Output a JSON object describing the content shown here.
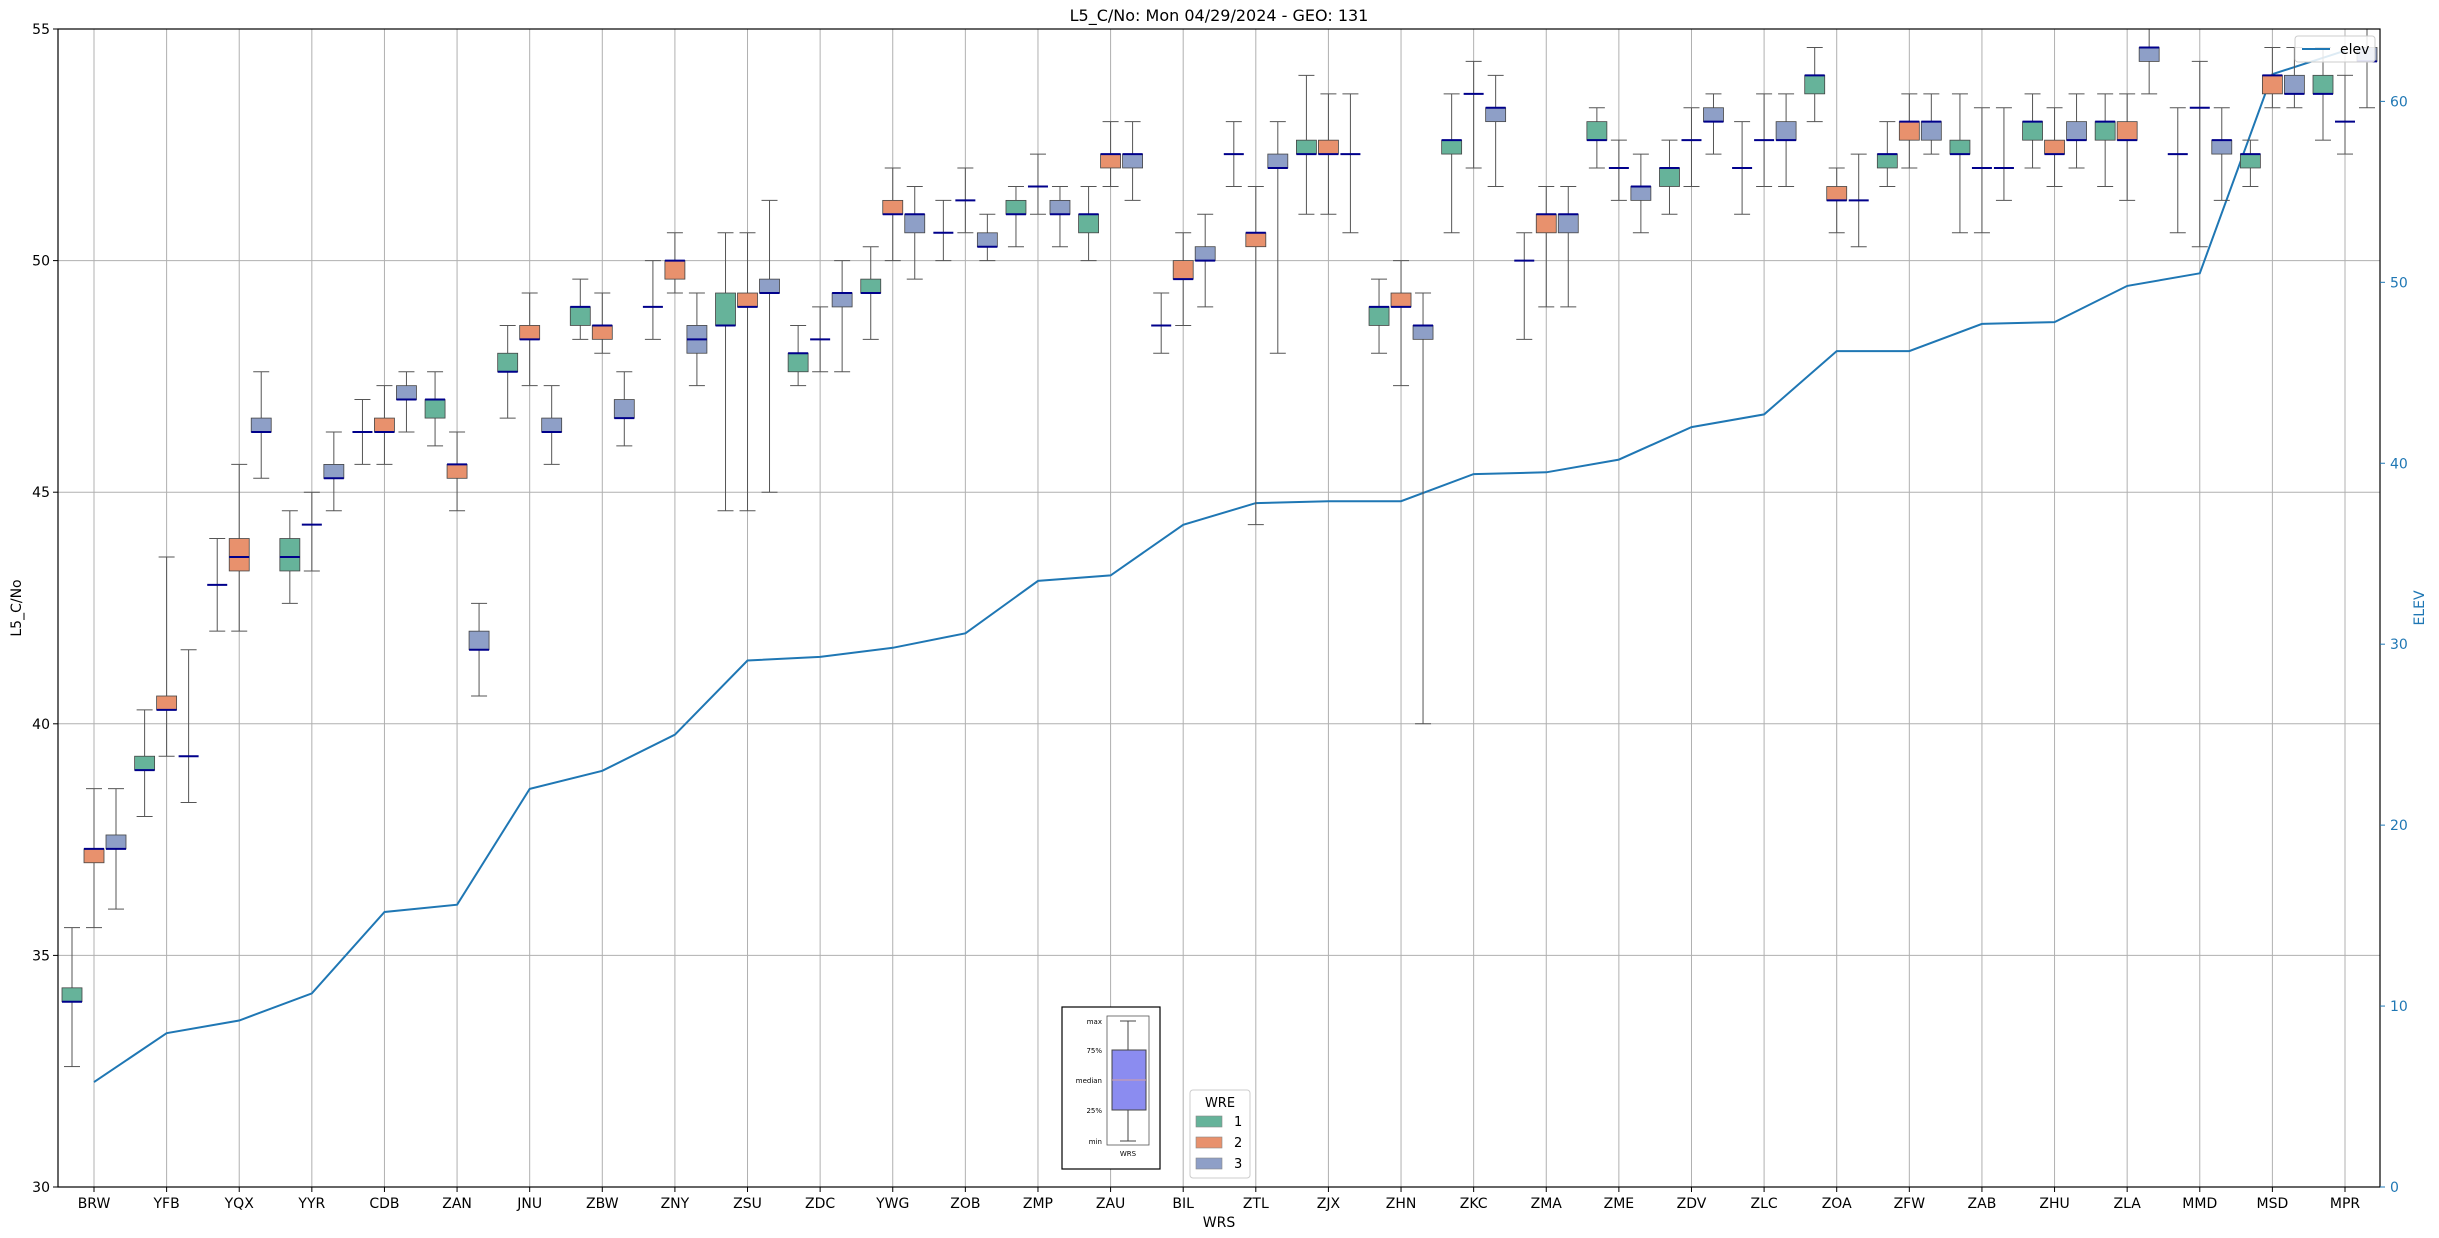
{
  "chart_data": {
    "type": "box",
    "title": "L5_C/No: Mon 04/29/2024 - GEO: 131",
    "xlabel": "WRS",
    "ylabel": "L5_C/No",
    "y2label": "ELEV",
    "ylim": [
      30,
      55
    ],
    "y2lim": [
      0,
      64
    ],
    "yticks": [
      30,
      35,
      40,
      45,
      50,
      55
    ],
    "y2ticks": [
      0,
      10,
      20,
      30,
      40,
      50,
      60
    ],
    "grid": true,
    "categories": [
      "BRW",
      "YFB",
      "YQX",
      "YYR",
      "CDB",
      "ZAN",
      "JNU",
      "ZBW",
      "ZNY",
      "ZSU",
      "ZDC",
      "YWG",
      "ZOB",
      "ZMP",
      "ZAU",
      "BIL",
      "ZTL",
      "ZJX",
      "ZHN",
      "ZKC",
      "ZMA",
      "ZME",
      "ZDV",
      "ZLC",
      "ZOA",
      "ZFW",
      "ZAB",
      "ZHU",
      "ZLA",
      "MMD",
      "MSD",
      "MPR"
    ],
    "wre_colors": {
      "1": "#66b39a",
      "2": "#e8916d",
      "3": "#8e9fc7"
    },
    "median_color": "#00008b",
    "elev_color": "#1f77b4",
    "boxes": [
      {
        "wrs": "BRW",
        "wre": 1,
        "min": 32.6,
        "q1": 34.0,
        "median": 34.0,
        "q3": 34.3,
        "max": 35.6
      },
      {
        "wrs": "BRW",
        "wre": 2,
        "min": 35.6,
        "q1": 37.0,
        "median": 37.3,
        "q3": 37.3,
        "max": 38.6
      },
      {
        "wrs": "BRW",
        "wre": 3,
        "min": 36.0,
        "q1": 37.3,
        "median": 37.3,
        "q3": 37.6,
        "max": 38.6
      },
      {
        "wrs": "YFB",
        "wre": 1,
        "min": 38.0,
        "q1": 39.0,
        "median": 39.0,
        "q3": 39.3,
        "max": 40.3
      },
      {
        "wrs": "YFB",
        "wre": 2,
        "min": 39.3,
        "q1": 40.3,
        "median": 40.3,
        "q3": 40.6,
        "max": 43.6
      },
      {
        "wrs": "YFB",
        "wre": 3,
        "min": 38.3,
        "q1": 39.3,
        "median": 39.3,
        "q3": 39.3,
        "max": 41.6
      },
      {
        "wrs": "YQX",
        "wre": 1,
        "min": 42.0,
        "q1": 43.0,
        "median": 43.0,
        "q3": 43.0,
        "max": 44.0
      },
      {
        "wrs": "YQX",
        "wre": 2,
        "min": 42.0,
        "q1": 43.3,
        "median": 43.6,
        "q3": 44.0,
        "max": 45.6
      },
      {
        "wrs": "YQX",
        "wre": 3,
        "min": 45.3,
        "q1": 46.3,
        "median": 46.3,
        "q3": 46.6,
        "max": 47.6
      },
      {
        "wrs": "YYR",
        "wre": 1,
        "min": 42.6,
        "q1": 43.3,
        "median": 43.6,
        "q3": 44.0,
        "max": 44.6
      },
      {
        "wrs": "YYR",
        "wre": 2,
        "min": 43.3,
        "q1": 44.3,
        "median": 44.3,
        "q3": 44.3,
        "max": 45.0
      },
      {
        "wrs": "YYR",
        "wre": 3,
        "min": 44.6,
        "q1": 45.3,
        "median": 45.3,
        "q3": 45.6,
        "max": 46.3
      },
      {
        "wrs": "CDB",
        "wre": 1,
        "min": 45.6,
        "q1": 46.3,
        "median": 46.3,
        "q3": 46.3,
        "max": 47.0
      },
      {
        "wrs": "CDB",
        "wre": 2,
        "min": 45.6,
        "q1": 46.3,
        "median": 46.3,
        "q3": 46.6,
        "max": 47.3
      },
      {
        "wrs": "CDB",
        "wre": 3,
        "min": 46.3,
        "q1": 47.0,
        "median": 47.0,
        "q3": 47.3,
        "max": 47.6
      },
      {
        "wrs": "ZAN",
        "wre": 1,
        "min": 46.0,
        "q1": 46.6,
        "median": 47.0,
        "q3": 47.0,
        "max": 47.6
      },
      {
        "wrs": "ZAN",
        "wre": 2,
        "min": 44.6,
        "q1": 45.3,
        "median": 45.6,
        "q3": 45.6,
        "max": 46.3
      },
      {
        "wrs": "ZAN",
        "wre": 3,
        "min": 40.6,
        "q1": 41.6,
        "median": 41.6,
        "q3": 42.0,
        "max": 42.6
      },
      {
        "wrs": "JNU",
        "wre": 1,
        "min": 46.6,
        "q1": 47.6,
        "median": 47.6,
        "q3": 48.0,
        "max": 48.6
      },
      {
        "wrs": "JNU",
        "wre": 2,
        "min": 47.3,
        "q1": 48.3,
        "median": 48.3,
        "q3": 48.6,
        "max": 49.3
      },
      {
        "wrs": "JNU",
        "wre": 3,
        "min": 45.6,
        "q1": 46.3,
        "median": 46.3,
        "q3": 46.6,
        "max": 47.3
      },
      {
        "wrs": "ZBW",
        "wre": 1,
        "min": 48.3,
        "q1": 48.6,
        "median": 49.0,
        "q3": 49.0,
        "max": 49.6
      },
      {
        "wrs": "ZBW",
        "wre": 2,
        "min": 48.0,
        "q1": 48.3,
        "median": 48.6,
        "q3": 48.6,
        "max": 49.3
      },
      {
        "wrs": "ZBW",
        "wre": 3,
        "min": 46.0,
        "q1": 46.6,
        "median": 46.6,
        "q3": 47.0,
        "max": 47.6
      },
      {
        "wrs": "ZNY",
        "wre": 1,
        "min": 48.3,
        "q1": 49.0,
        "median": 49.0,
        "q3": 49.0,
        "max": 50.0
      },
      {
        "wrs": "ZNY",
        "wre": 2,
        "min": 49.3,
        "q1": 49.6,
        "median": 50.0,
        "q3": 50.0,
        "max": 50.6
      },
      {
        "wrs": "ZNY",
        "wre": 3,
        "min": 47.3,
        "q1": 48.0,
        "median": 48.3,
        "q3": 48.6,
        "max": 49.3
      },
      {
        "wrs": "ZSU",
        "wre": 1,
        "min": 44.6,
        "q1": 48.6,
        "median": 48.6,
        "q3": 49.3,
        "max": 50.6
      },
      {
        "wrs": "ZSU",
        "wre": 2,
        "min": 44.6,
        "q1": 49.0,
        "median": 49.0,
        "q3": 49.3,
        "max": 50.6
      },
      {
        "wrs": "ZSU",
        "wre": 3,
        "min": 45.0,
        "q1": 49.3,
        "median": 49.3,
        "q3": 49.6,
        "max": 51.3
      },
      {
        "wrs": "ZDC",
        "wre": 1,
        "min": 47.3,
        "q1": 47.6,
        "median": 48.0,
        "q3": 48.0,
        "max": 48.6
      },
      {
        "wrs": "ZDC",
        "wre": 2,
        "min": 47.6,
        "q1": 48.3,
        "median": 48.3,
        "q3": 48.3,
        "max": 49.0
      },
      {
        "wrs": "ZDC",
        "wre": 3,
        "min": 47.6,
        "q1": 49.0,
        "median": 49.3,
        "q3": 49.3,
        "max": 50.0
      },
      {
        "wrs": "YWG",
        "wre": 1,
        "min": 48.3,
        "q1": 49.3,
        "median": 49.3,
        "q3": 49.6,
        "max": 50.3
      },
      {
        "wrs": "YWG",
        "wre": 2,
        "min": 50.0,
        "q1": 51.0,
        "median": 51.0,
        "q3": 51.3,
        "max": 52.0
      },
      {
        "wrs": "YWG",
        "wre": 3,
        "min": 49.6,
        "q1": 50.6,
        "median": 51.0,
        "q3": 51.0,
        "max": 51.6
      },
      {
        "wrs": "ZOB",
        "wre": 1,
        "min": 50.0,
        "q1": 50.6,
        "median": 50.6,
        "q3": 50.6,
        "max": 51.3
      },
      {
        "wrs": "ZOB",
        "wre": 2,
        "min": 50.6,
        "q1": 51.3,
        "median": 51.3,
        "q3": 51.3,
        "max": 52.0
      },
      {
        "wrs": "ZOB",
        "wre": 3,
        "min": 50.0,
        "q1": 50.3,
        "median": 50.3,
        "q3": 50.6,
        "max": 51.0
      },
      {
        "wrs": "ZMP",
        "wre": 1,
        "min": 50.3,
        "q1": 51.0,
        "median": 51.0,
        "q3": 51.3,
        "max": 51.6
      },
      {
        "wrs": "ZMP",
        "wre": 2,
        "min": 51.0,
        "q1": 51.6,
        "median": 51.6,
        "q3": 51.6,
        "max": 52.3
      },
      {
        "wrs": "ZMP",
        "wre": 3,
        "min": 50.3,
        "q1": 51.0,
        "median": 51.0,
        "q3": 51.3,
        "max": 51.6
      },
      {
        "wrs": "ZAU",
        "wre": 1,
        "min": 50.0,
        "q1": 50.6,
        "median": 51.0,
        "q3": 51.0,
        "max": 51.6
      },
      {
        "wrs": "ZAU",
        "wre": 2,
        "min": 51.6,
        "q1": 52.0,
        "median": 52.3,
        "q3": 52.3,
        "max": 53.0
      },
      {
        "wrs": "ZAU",
        "wre": 3,
        "min": 51.3,
        "q1": 52.0,
        "median": 52.3,
        "q3": 52.3,
        "max": 53.0
      },
      {
        "wrs": "BIL",
        "wre": 1,
        "min": 48.0,
        "q1": 48.6,
        "median": 48.6,
        "q3": 48.6,
        "max": 49.3
      },
      {
        "wrs": "BIL",
        "wre": 2,
        "min": 48.6,
        "q1": 49.6,
        "median": 49.6,
        "q3": 50.0,
        "max": 50.6
      },
      {
        "wrs": "BIL",
        "wre": 3,
        "min": 49.0,
        "q1": 50.0,
        "median": 50.0,
        "q3": 50.3,
        "max": 51.0
      },
      {
        "wrs": "ZTL",
        "wre": 1,
        "min": 51.6,
        "q1": 52.3,
        "median": 52.3,
        "q3": 52.3,
        "max": 53.0
      },
      {
        "wrs": "ZTL",
        "wre": 2,
        "min": 44.3,
        "q1": 50.3,
        "median": 50.6,
        "q3": 50.6,
        "max": 51.6
      },
      {
        "wrs": "ZTL",
        "wre": 3,
        "min": 48.0,
        "q1": 52.0,
        "median": 52.0,
        "q3": 52.3,
        "max": 53.0
      },
      {
        "wrs": "ZJX",
        "wre": 1,
        "min": 51.0,
        "q1": 52.3,
        "median": 52.3,
        "q3": 52.6,
        "max": 54.0
      },
      {
        "wrs": "ZJX",
        "wre": 2,
        "min": 51.0,
        "q1": 52.3,
        "median": 52.3,
        "q3": 52.6,
        "max": 53.6
      },
      {
        "wrs": "ZJX",
        "wre": 3,
        "min": 50.6,
        "q1": 52.3,
        "median": 52.3,
        "q3": 52.3,
        "max": 53.6
      },
      {
        "wrs": "ZHN",
        "wre": 1,
        "min": 48.0,
        "q1": 48.6,
        "median": 49.0,
        "q3": 49.0,
        "max": 49.6
      },
      {
        "wrs": "ZHN",
        "wre": 2,
        "min": 47.3,
        "q1": 49.0,
        "median": 49.0,
        "q3": 49.3,
        "max": 50.0
      },
      {
        "wrs": "ZHN",
        "wre": 3,
        "min": 40.0,
        "q1": 48.3,
        "median": 48.6,
        "q3": 48.6,
        "max": 49.3
      },
      {
        "wrs": "ZKC",
        "wre": 1,
        "min": 50.6,
        "q1": 52.3,
        "median": 52.6,
        "q3": 52.6,
        "max": 53.6
      },
      {
        "wrs": "ZKC",
        "wre": 2,
        "min": 52.0,
        "q1": 53.6,
        "median": 53.6,
        "q3": 53.6,
        "max": 54.3
      },
      {
        "wrs": "ZKC",
        "wre": 3,
        "min": 51.6,
        "q1": 53.0,
        "median": 53.3,
        "q3": 53.3,
        "max": 54.0
      },
      {
        "wrs": "ZMA",
        "wre": 1,
        "min": 48.3,
        "q1": 50.0,
        "median": 50.0,
        "q3": 50.0,
        "max": 50.6
      },
      {
        "wrs": "ZMA",
        "wre": 2,
        "min": 49.0,
        "q1": 50.6,
        "median": 51.0,
        "q3": 51.0,
        "max": 51.6
      },
      {
        "wrs": "ZMA",
        "wre": 3,
        "min": 49.0,
        "q1": 50.6,
        "median": 51.0,
        "q3": 51.0,
        "max": 51.6
      },
      {
        "wrs": "ZME",
        "wre": 1,
        "min": 52.0,
        "q1": 52.6,
        "median": 52.6,
        "q3": 53.0,
        "max": 53.3
      },
      {
        "wrs": "ZME",
        "wre": 2,
        "min": 51.3,
        "q1": 52.0,
        "median": 52.0,
        "q3": 52.0,
        "max": 52.6
      },
      {
        "wrs": "ZME",
        "wre": 3,
        "min": 50.6,
        "q1": 51.3,
        "median": 51.6,
        "q3": 51.6,
        "max": 52.3
      },
      {
        "wrs": "ZDV",
        "wre": 1,
        "min": 51.0,
        "q1": 51.6,
        "median": 52.0,
        "q3": 52.0,
        "max": 52.6
      },
      {
        "wrs": "ZDV",
        "wre": 2,
        "min": 51.6,
        "q1": 52.6,
        "median": 52.6,
        "q3": 52.6,
        "max": 53.3
      },
      {
        "wrs": "ZDV",
        "wre": 3,
        "min": 52.3,
        "q1": 53.0,
        "median": 53.0,
        "q3": 53.3,
        "max": 53.6
      },
      {
        "wrs": "ZLC",
        "wre": 1,
        "min": 51.0,
        "q1": 52.0,
        "median": 52.0,
        "q3": 52.0,
        "max": 53.0
      },
      {
        "wrs": "ZLC",
        "wre": 2,
        "min": 51.6,
        "q1": 52.6,
        "median": 52.6,
        "q3": 52.6,
        "max": 53.6
      },
      {
        "wrs": "ZLC",
        "wre": 3,
        "min": 51.6,
        "q1": 52.6,
        "median": 52.6,
        "q3": 53.0,
        "max": 53.6
      },
      {
        "wrs": "ZOA",
        "wre": 1,
        "min": 53.0,
        "q1": 53.6,
        "median": 54.0,
        "q3": 54.0,
        "max": 54.6
      },
      {
        "wrs": "ZOA",
        "wre": 2,
        "min": 50.6,
        "q1": 51.3,
        "median": 51.3,
        "q3": 51.6,
        "max": 52.0
      },
      {
        "wrs": "ZOA",
        "wre": 3,
        "min": 50.3,
        "q1": 51.3,
        "median": 51.3,
        "q3": 51.3,
        "max": 52.3
      },
      {
        "wrs": "ZFW",
        "wre": 1,
        "min": 51.6,
        "q1": 52.0,
        "median": 52.3,
        "q3": 52.3,
        "max": 53.0
      },
      {
        "wrs": "ZFW",
        "wre": 2,
        "min": 52.0,
        "q1": 52.6,
        "median": 53.0,
        "q3": 53.0,
        "max": 53.6
      },
      {
        "wrs": "ZFW",
        "wre": 3,
        "min": 52.3,
        "q1": 52.6,
        "median": 53.0,
        "q3": 53.0,
        "max": 53.6
      },
      {
        "wrs": "ZAB",
        "wre": 1,
        "min": 50.6,
        "q1": 52.3,
        "median": 52.3,
        "q3": 52.6,
        "max": 53.6
      },
      {
        "wrs": "ZAB",
        "wre": 2,
        "min": 50.6,
        "q1": 52.0,
        "median": 52.0,
        "q3": 52.0,
        "max": 53.3
      },
      {
        "wrs": "ZAB",
        "wre": 3,
        "min": 51.3,
        "q1": 52.0,
        "median": 52.0,
        "q3": 52.0,
        "max": 53.3
      },
      {
        "wrs": "ZHU",
        "wre": 1,
        "min": 52.0,
        "q1": 52.6,
        "median": 53.0,
        "q3": 53.0,
        "max": 53.6
      },
      {
        "wrs": "ZHU",
        "wre": 2,
        "min": 51.6,
        "q1": 52.3,
        "median": 52.3,
        "q3": 52.6,
        "max": 53.3
      },
      {
        "wrs": "ZHU",
        "wre": 3,
        "min": 52.0,
        "q1": 52.6,
        "median": 52.6,
        "q3": 53.0,
        "max": 53.6
      },
      {
        "wrs": "ZLA",
        "wre": 1,
        "min": 51.6,
        "q1": 52.6,
        "median": 53.0,
        "q3": 53.0,
        "max": 53.6
      },
      {
        "wrs": "ZLA",
        "wre": 2,
        "min": 51.3,
        "q1": 52.6,
        "median": 52.6,
        "q3": 53.0,
        "max": 53.6
      },
      {
        "wrs": "ZLA",
        "wre": 3,
        "min": 53.6,
        "q1": 54.3,
        "median": 54.6,
        "q3": 54.6,
        "max": 55.0
      },
      {
        "wrs": "MMD",
        "wre": 1,
        "min": 50.6,
        "q1": 52.3,
        "median": 52.3,
        "q3": 52.3,
        "max": 53.3
      },
      {
        "wrs": "MMD",
        "wre": 2,
        "min": 50.3,
        "q1": 53.3,
        "median": 53.3,
        "q3": 53.3,
        "max": 54.3
      },
      {
        "wrs": "MMD",
        "wre": 3,
        "min": 51.3,
        "q1": 52.3,
        "median": 52.6,
        "q3": 52.6,
        "max": 53.3
      },
      {
        "wrs": "MSD",
        "wre": 1,
        "min": 51.6,
        "q1": 52.0,
        "median": 52.3,
        "q3": 52.3,
        "max": 52.6
      },
      {
        "wrs": "MSD",
        "wre": 2,
        "min": 53.3,
        "q1": 53.6,
        "median": 54.0,
        "q3": 54.0,
        "max": 54.6
      },
      {
        "wrs": "MSD",
        "wre": 3,
        "min": 53.3,
        "q1": 53.6,
        "median": 53.6,
        "q3": 54.0,
        "max": 54.6
      },
      {
        "wrs": "MPR",
        "wre": 1,
        "min": 52.6,
        "q1": 53.6,
        "median": 53.6,
        "q3": 54.0,
        "max": 54.6
      },
      {
        "wrs": "MPR",
        "wre": 2,
        "min": 52.3,
        "q1": 53.0,
        "median": 53.0,
        "q3": 53.0,
        "max": 54.0
      },
      {
        "wrs": "MPR",
        "wre": 3,
        "min": 53.3,
        "q1": 54.3,
        "median": 54.3,
        "q3": 54.6,
        "max": 55.0
      }
    ],
    "elev_series": {
      "name": "elev",
      "values": [
        5.8,
        8.5,
        9.2,
        10.7,
        15.2,
        15.6,
        22.0,
        23.0,
        25.0,
        29.1,
        29.3,
        29.8,
        30.6,
        33.5,
        33.8,
        36.6,
        37.8,
        37.9,
        37.9,
        39.4,
        39.5,
        40.2,
        42.0,
        42.7,
        46.2,
        46.2,
        47.7,
        47.8,
        49.8,
        50.5,
        61.5,
        62.8
      ]
    },
    "legend_wre": {
      "title": "WRE",
      "items": [
        "1",
        "2",
        "3"
      ],
      "placement": "lower-center"
    },
    "legend_elev": {
      "placement": "top-right"
    },
    "inset": {
      "labels": [
        "max",
        "75%",
        "median",
        "25%",
        "min"
      ],
      "xlabel": "WRS",
      "box_color": "#8b8cf0"
    }
  }
}
